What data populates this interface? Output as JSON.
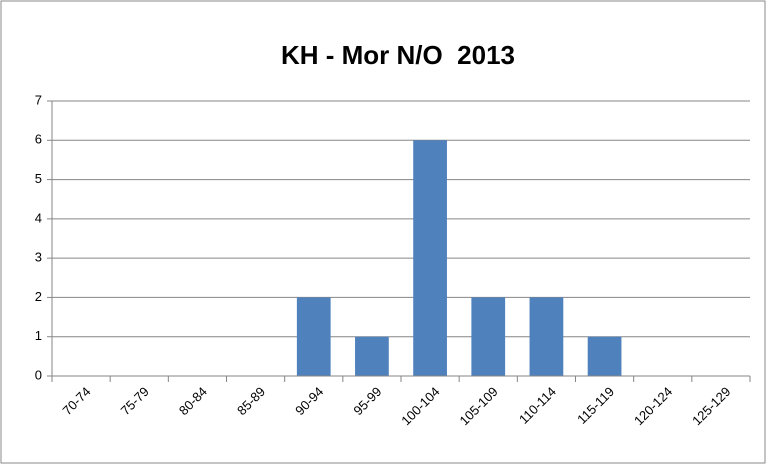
{
  "chart_data": {
    "type": "bar",
    "title": "KH - Mor N/O  2013",
    "categories": [
      "70-74",
      "75-79",
      "80-84",
      "85-89",
      "90-94",
      "95-99",
      "100-104",
      "105-109",
      "110-114",
      "115-119",
      "120-124",
      "125-129"
    ],
    "values": [
      0,
      0,
      0,
      0,
      2,
      1,
      6,
      2,
      2,
      1,
      0,
      0
    ],
    "color": "#4f81bd",
    "ylim": [
      0,
      7
    ],
    "yticks": [
      0,
      1,
      2,
      3,
      4,
      5,
      6,
      7
    ],
    "grid": true
  }
}
